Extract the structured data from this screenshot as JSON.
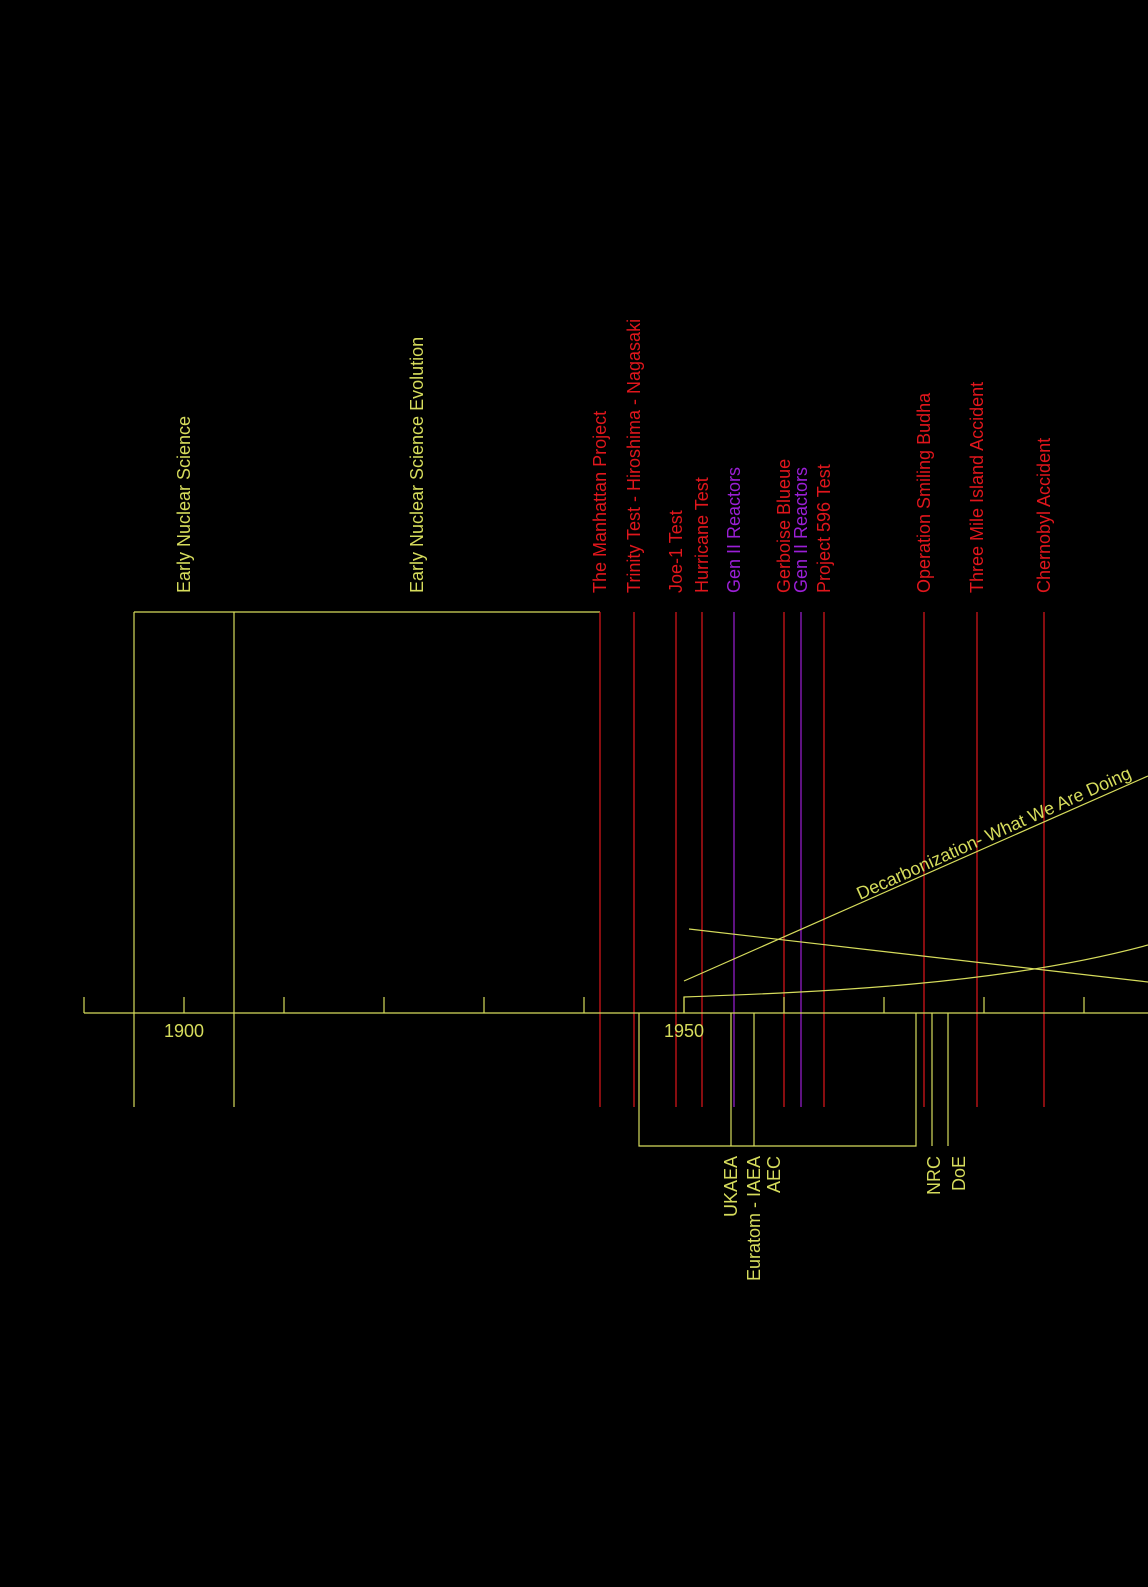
{
  "colors": {
    "background": "#000000",
    "axis": "#d6dc5c",
    "conflict": "#e0161c",
    "reactor": "#9b1fd6",
    "label_yellow": "#d6dc5c"
  },
  "axis": {
    "start_year": 1890,
    "ticks_every_years": 10,
    "year_labels": [
      "1900",
      "1950"
    ]
  },
  "upper_periods": [
    {
      "label": "Early Nuclear Science",
      "start_year": 1895,
      "end_year": 1905
    },
    {
      "label": "Early Nuclear Science Evolution",
      "start_year": 1905,
      "end_year": 1941.6
    }
  ],
  "events": [
    {
      "label": "The Manhattan Project",
      "year": 1941.6,
      "kind": "conflict"
    },
    {
      "label": "Trinity Test - Hiroshima - Nagasaki",
      "year": 1945,
      "kind": "conflict"
    },
    {
      "label": "Joe-1 Test",
      "year": 1949.2,
      "kind": "conflict"
    },
    {
      "label": "Hurricane Test",
      "year": 1951.8,
      "kind": "conflict"
    },
    {
      "label": "Gen II Reactors",
      "year": 1955,
      "kind": "reactor"
    },
    {
      "label": "Gerboise Blueue",
      "year": 1960,
      "kind": "conflict"
    },
    {
      "label": "Gen II Reactors",
      "year": 1961.7,
      "kind": "reactor"
    },
    {
      "label": "Project 596 Test",
      "year": 1964,
      "kind": "conflict"
    },
    {
      "label": "Operation Smiling Budha",
      "year": 1974,
      "kind": "conflict"
    },
    {
      "label": "Three Mile Island Accident",
      "year": 1979.3,
      "kind": "conflict"
    },
    {
      "label": "Chernobyl Accident",
      "year": 1986,
      "kind": "conflict"
    }
  ],
  "agencies": [
    {
      "label": "UKAEA",
      "year": 1954.7
    },
    {
      "label": "Euratom - IAEA",
      "year": 1957
    },
    {
      "label": "AEC",
      "year": 1959
    },
    {
      "label": "NRC",
      "year": 1975
    },
    {
      "label": "DoE",
      "year": 1977.5
    }
  ],
  "agency_bracket": {
    "start_year": 1945.5,
    "end_year": 1973.2
  },
  "agency_lines": [
    {
      "year": 1954.7
    },
    {
      "year": 1957
    },
    {
      "year": 1974.8
    },
    {
      "year": 1976.4
    }
  ],
  "annotation": {
    "text": "Decarbonization- What We Are Doing"
  }
}
